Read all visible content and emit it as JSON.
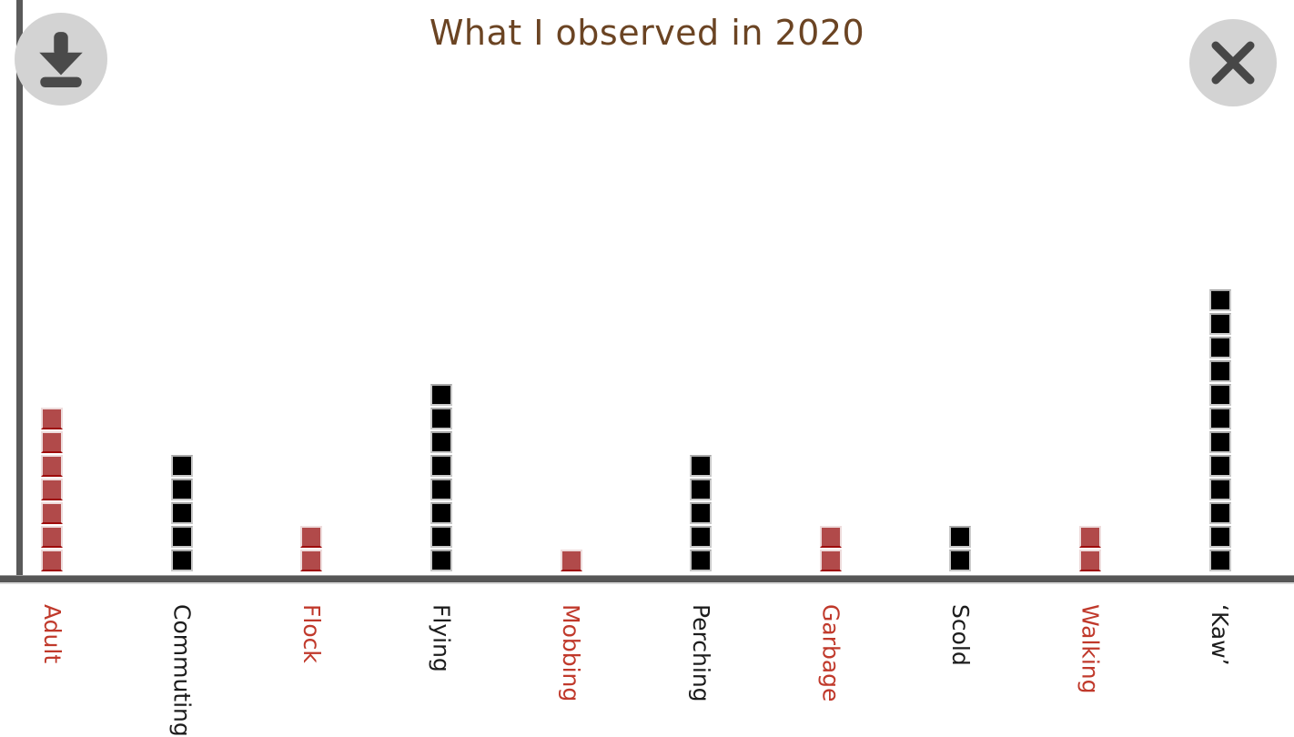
{
  "title": "What I observed in 2020",
  "buttons": {
    "download": {
      "icon": "download-icon"
    },
    "close": {
      "icon": "close-icon"
    }
  },
  "colors": {
    "title_text": "#6b4423",
    "axis": "#5a5a5a",
    "button_background": "#d3d3d3",
    "button_icon": "#4a4a4a",
    "red_square_fill": "#b14a4a",
    "red_square_border": "#eedcdc",
    "red_square_bottom_edge": "#9e0b0b",
    "black_square_fill": "#000000",
    "black_square_border": "#c9c9c9",
    "red_label_text": "#c0392b",
    "black_label_text": "#1c1c1c"
  },
  "chart_data": {
    "type": "bar",
    "variant": "stacked-unit-squares (waffle-style bar chart, 1 square = 1 count)",
    "title": "What I observed in 2020",
    "categories": [
      "Adult",
      "Commuting",
      "Flock",
      "Flying",
      "Mobbing",
      "Perching",
      "Garbage",
      "Scold",
      "Walking",
      "‘Kaw’"
    ],
    "values": [
      7,
      5,
      2,
      8,
      1,
      5,
      2,
      2,
      2,
      12
    ],
    "colors": [
      "red",
      "black",
      "red",
      "black",
      "red",
      "black",
      "red",
      "black",
      "red",
      "black"
    ],
    "xlabel": "",
    "ylabel": "",
    "ylim": [
      0,
      12
    ],
    "grid": false,
    "legend": false,
    "x_tick_rotation_deg": 90,
    "x_tick_label_colors_match_bars": true
  }
}
